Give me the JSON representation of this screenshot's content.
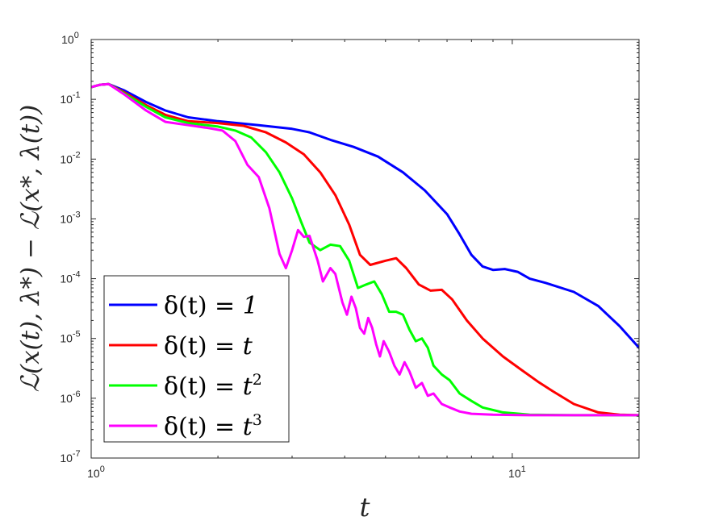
{
  "chart_data": {
    "type": "line",
    "xscale": "log",
    "yscale": "log",
    "xlim": [
      1,
      20
    ],
    "ylim": [
      1e-07,
      1
    ],
    "xlabel": "t",
    "ylabel": "ℒ(x(t), λ*) − ℒ(x*, λ(t))",
    "x_ticks": [
      {
        "value": 1,
        "base": "10",
        "exp": "0"
      },
      {
        "value": 10,
        "base": "10",
        "exp": "1"
      }
    ],
    "y_ticks": [
      {
        "value": 1.0,
        "base": "10",
        "exp": "0"
      },
      {
        "value": 0.1,
        "base": "10",
        "exp": "-1"
      },
      {
        "value": 0.01,
        "base": "10",
        "exp": "-2"
      },
      {
        "value": 0.001,
        "base": "10",
        "exp": "-3"
      },
      {
        "value": 0.0001,
        "base": "10",
        "exp": "-4"
      },
      {
        "value": 1e-05,
        "base": "10",
        "exp": "-5"
      },
      {
        "value": 1e-06,
        "base": "10",
        "exp": "-6"
      },
      {
        "value": 1e-07,
        "base": "10",
        "exp": "-7"
      }
    ],
    "grid": false,
    "legend_position": "bottom-left",
    "series": [
      {
        "name": "δ(t) = 1",
        "legend": {
          "prefix": "δ(t) = ",
          "main": "1",
          "sup": ""
        },
        "color": "#0000ff",
        "points": [
          [
            1.0,
            0.16
          ],
          [
            1.05,
            0.175
          ],
          [
            1.1,
            0.18
          ],
          [
            1.2,
            0.14
          ],
          [
            1.35,
            0.09
          ],
          [
            1.5,
            0.065
          ],
          [
            1.7,
            0.05
          ],
          [
            2.0,
            0.043
          ],
          [
            2.5,
            0.037
          ],
          [
            3.0,
            0.032
          ],
          [
            3.3,
            0.028
          ],
          [
            3.7,
            0.021
          ],
          [
            4.2,
            0.016
          ],
          [
            4.8,
            0.011
          ],
          [
            5.5,
            0.006
          ],
          [
            6.2,
            0.003
          ],
          [
            7.0,
            0.0012
          ],
          [
            7.5,
            0.00055
          ],
          [
            8.0,
            0.00025
          ],
          [
            8.5,
            0.00016
          ],
          [
            9.0,
            0.00014
          ],
          [
            9.6,
            0.000145
          ],
          [
            10.3,
            0.00013
          ],
          [
            11.0,
            0.0001
          ],
          [
            12.0,
            8.5e-05
          ],
          [
            14.0,
            6e-05
          ],
          [
            16.0,
            3.5e-05
          ],
          [
            18.0,
            1.6e-05
          ],
          [
            20.0,
            7e-06
          ]
        ]
      },
      {
        "name": "δ(t) = t",
        "legend": {
          "prefix": "δ(t) = ",
          "main": "t",
          "sup": ""
        },
        "color": "#ff0000",
        "points": [
          [
            1.0,
            0.16
          ],
          [
            1.05,
            0.175
          ],
          [
            1.1,
            0.18
          ],
          [
            1.2,
            0.13
          ],
          [
            1.35,
            0.08
          ],
          [
            1.5,
            0.055
          ],
          [
            1.7,
            0.043
          ],
          [
            2.0,
            0.04
          ],
          [
            2.3,
            0.036
          ],
          [
            2.6,
            0.028
          ],
          [
            2.9,
            0.019
          ],
          [
            3.2,
            0.012
          ],
          [
            3.5,
            0.006
          ],
          [
            3.8,
            0.0025
          ],
          [
            4.1,
            0.0008
          ],
          [
            4.35,
            0.00025
          ],
          [
            4.6,
            0.00017
          ],
          [
            5.0,
            0.0002
          ],
          [
            5.3,
            0.00022
          ],
          [
            5.6,
            0.00015
          ],
          [
            6.0,
            8e-05
          ],
          [
            6.4,
            6.3e-05
          ],
          [
            6.8,
            6.5e-05
          ],
          [
            7.2,
            4.5e-05
          ],
          [
            7.8,
            2e-05
          ],
          [
            8.5,
            1e-05
          ],
          [
            9.5,
            5e-06
          ],
          [
            10.5,
            3e-06
          ],
          [
            11.5,
            1.9e-06
          ],
          [
            12.5,
            1.3e-06
          ],
          [
            14.0,
            8e-07
          ],
          [
            16.0,
            5.8e-07
          ],
          [
            18.0,
            5.3e-07
          ],
          [
            20.0,
            5.2e-07
          ]
        ]
      },
      {
        "name": "δ(t) = t²",
        "legend": {
          "prefix": "δ(t) = ",
          "main": "t",
          "sup": "2"
        },
        "color": "#00ff00",
        "points": [
          [
            1.0,
            0.16
          ],
          [
            1.05,
            0.175
          ],
          [
            1.1,
            0.18
          ],
          [
            1.2,
            0.125
          ],
          [
            1.35,
            0.075
          ],
          [
            1.5,
            0.05
          ],
          [
            1.7,
            0.04
          ],
          [
            2.0,
            0.035
          ],
          [
            2.2,
            0.03
          ],
          [
            2.4,
            0.023
          ],
          [
            2.6,
            0.013
          ],
          [
            2.8,
            0.006
          ],
          [
            3.0,
            0.0022
          ],
          [
            3.15,
            0.0009
          ],
          [
            3.3,
            0.0004
          ],
          [
            3.5,
            0.0003
          ],
          [
            3.7,
            0.00037
          ],
          [
            3.9,
            0.00035
          ],
          [
            4.1,
            0.0002
          ],
          [
            4.3,
            7e-05
          ],
          [
            4.5,
            8e-05
          ],
          [
            4.7,
            9e-05
          ],
          [
            4.9,
            5.5e-05
          ],
          [
            5.1,
            2.8e-05
          ],
          [
            5.3,
            2.8e-05
          ],
          [
            5.5,
            2.5e-05
          ],
          [
            5.7,
            1.4e-05
          ],
          [
            5.9,
            9e-06
          ],
          [
            6.1,
            1e-05
          ],
          [
            6.3,
            7e-06
          ],
          [
            6.5,
            3.5e-06
          ],
          [
            6.8,
            2.5e-06
          ],
          [
            7.1,
            2e-06
          ],
          [
            7.5,
            1.2e-06
          ],
          [
            8.0,
            9e-07
          ],
          [
            8.5,
            7e-07
          ],
          [
            9.5,
            5.8e-07
          ],
          [
            11.0,
            5.3e-07
          ],
          [
            14.0,
            5.2e-07
          ],
          [
            20.0,
            5.2e-07
          ]
        ]
      },
      {
        "name": "δ(t) = t³",
        "legend": {
          "prefix": "δ(t) = ",
          "main": "t",
          "sup": "3"
        },
        "color": "#ff00ff",
        "points": [
          [
            1.0,
            0.16
          ],
          [
            1.05,
            0.175
          ],
          [
            1.1,
            0.18
          ],
          [
            1.2,
            0.12
          ],
          [
            1.35,
            0.065
          ],
          [
            1.5,
            0.042
          ],
          [
            1.7,
            0.037
          ],
          [
            1.9,
            0.033
          ],
          [
            2.05,
            0.03
          ],
          [
            2.2,
            0.02
          ],
          [
            2.35,
            0.008
          ],
          [
            2.5,
            0.005
          ],
          [
            2.65,
            0.0015
          ],
          [
            2.8,
            0.00026
          ],
          [
            2.9,
            0.00015
          ],
          [
            3.0,
            0.0003
          ],
          [
            3.1,
            0.00065
          ],
          [
            3.2,
            0.0005
          ],
          [
            3.3,
            0.00052
          ],
          [
            3.45,
            0.0002
          ],
          [
            3.55,
            9e-05
          ],
          [
            3.7,
            0.00015
          ],
          [
            3.8,
            0.00012
          ],
          [
            3.95,
            4e-05
          ],
          [
            4.05,
            2.5e-05
          ],
          [
            4.15,
            5e-05
          ],
          [
            4.25,
            3.2e-05
          ],
          [
            4.35,
            1.5e-05
          ],
          [
            4.45,
            1.2e-05
          ],
          [
            4.55,
            2.2e-05
          ],
          [
            4.65,
            1.5e-05
          ],
          [
            4.75,
            8e-06
          ],
          [
            4.85,
            5e-06
          ],
          [
            4.95,
            9e-06
          ],
          [
            5.1,
            6e-06
          ],
          [
            5.25,
            3.5e-06
          ],
          [
            5.4,
            2.5e-06
          ],
          [
            5.55,
            4e-06
          ],
          [
            5.7,
            2.8e-06
          ],
          [
            5.9,
            1.5e-06
          ],
          [
            6.1,
            1.8e-06
          ],
          [
            6.3,
            1.1e-06
          ],
          [
            6.5,
            1.2e-06
          ],
          [
            6.8,
            8e-07
          ],
          [
            7.1,
            7e-07
          ],
          [
            7.5,
            6e-07
          ],
          [
            8.0,
            5.5e-07
          ],
          [
            9.0,
            5.3e-07
          ],
          [
            11.0,
            5.2e-07
          ],
          [
            20.0,
            5.2e-07
          ]
        ]
      }
    ]
  }
}
